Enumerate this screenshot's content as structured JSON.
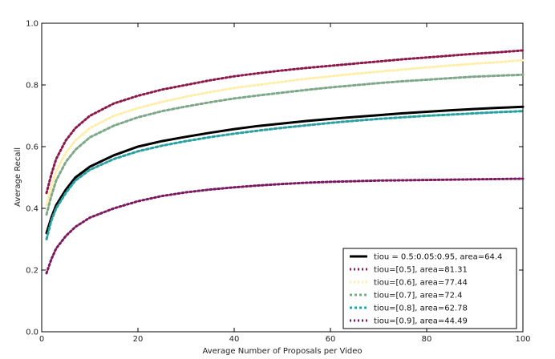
{
  "chart_data": {
    "type": "line",
    "title": "",
    "xlabel": "Average Number of Proposals per Video",
    "ylabel": "Average Recall",
    "xlim": [
      0,
      100
    ],
    "ylim": [
      0.0,
      1.0
    ],
    "xticks": [
      0,
      20,
      40,
      60,
      80,
      100
    ],
    "yticks": [
      0.0,
      0.2,
      0.4,
      0.6,
      0.8,
      1.0
    ],
    "xtick_labels": [
      "0",
      "20",
      "40",
      "60",
      "80",
      "100"
    ],
    "ytick_labels": [
      "0.0",
      "0.2",
      "0.4",
      "0.6",
      "0.8",
      "1.0"
    ],
    "grid": false,
    "legend_position": "bottom-right",
    "x": [
      1,
      2,
      3,
      5,
      7,
      10,
      15,
      20,
      25,
      30,
      35,
      40,
      45,
      50,
      55,
      60,
      65,
      70,
      75,
      80,
      85,
      90,
      95,
      100
    ],
    "series": [
      {
        "name": "tiou = 0.5:0.05:0.95, area=64.4",
        "color": "#000000",
        "style": "solid",
        "values": [
          0.32,
          0.37,
          0.41,
          0.46,
          0.5,
          0.535,
          0.572,
          0.6,
          0.618,
          0.632,
          0.645,
          0.657,
          0.667,
          0.675,
          0.683,
          0.69,
          0.696,
          0.702,
          0.708,
          0.713,
          0.718,
          0.722,
          0.726,
          0.729
        ]
      },
      {
        "name": "tiou=[0.5], area=81.31",
        "color": "#8b1a4a",
        "style": "dotted",
        "values": [
          0.45,
          0.51,
          0.56,
          0.62,
          0.66,
          0.7,
          0.74,
          0.765,
          0.785,
          0.8,
          0.815,
          0.828,
          0.838,
          0.847,
          0.855,
          0.862,
          0.869,
          0.876,
          0.883,
          0.889,
          0.895,
          0.901,
          0.906,
          0.912
        ]
      },
      {
        "name": "tiou=[0.6], area=77.44",
        "color": "#ffeeaa",
        "style": "dotted",
        "values": [
          0.41,
          0.47,
          0.52,
          0.58,
          0.62,
          0.66,
          0.7,
          0.725,
          0.745,
          0.762,
          0.777,
          0.79,
          0.8,
          0.81,
          0.82,
          0.828,
          0.836,
          0.843,
          0.85,
          0.857,
          0.863,
          0.869,
          0.874,
          0.88
        ]
      },
      {
        "name": "tiou=[0.7], area=72.4",
        "color": "#7fa88a",
        "style": "dashed",
        "values": [
          0.38,
          0.44,
          0.49,
          0.55,
          0.59,
          0.63,
          0.668,
          0.695,
          0.715,
          0.73,
          0.744,
          0.756,
          0.766,
          0.775,
          0.784,
          0.792,
          0.799,
          0.806,
          0.812,
          0.817,
          0.822,
          0.827,
          0.83,
          0.833
        ]
      },
      {
        "name": "tiou=[0.8], area=62.78",
        "color": "#2aa0a0",
        "style": "dashed",
        "values": [
          0.3,
          0.36,
          0.4,
          0.45,
          0.49,
          0.525,
          0.56,
          0.585,
          0.603,
          0.618,
          0.631,
          0.642,
          0.652,
          0.661,
          0.669,
          0.677,
          0.684,
          0.69,
          0.695,
          0.7,
          0.704,
          0.708,
          0.712,
          0.715
        ]
      },
      {
        "name": "tiou=[0.9], area=44.49",
        "color": "#7a1a5e",
        "style": "dotted",
        "values": [
          0.19,
          0.235,
          0.27,
          0.31,
          0.34,
          0.37,
          0.4,
          0.423,
          0.44,
          0.452,
          0.461,
          0.468,
          0.474,
          0.479,
          0.483,
          0.486,
          0.488,
          0.49,
          0.491,
          0.492,
          0.493,
          0.494,
          0.495,
          0.496
        ]
      }
    ]
  }
}
